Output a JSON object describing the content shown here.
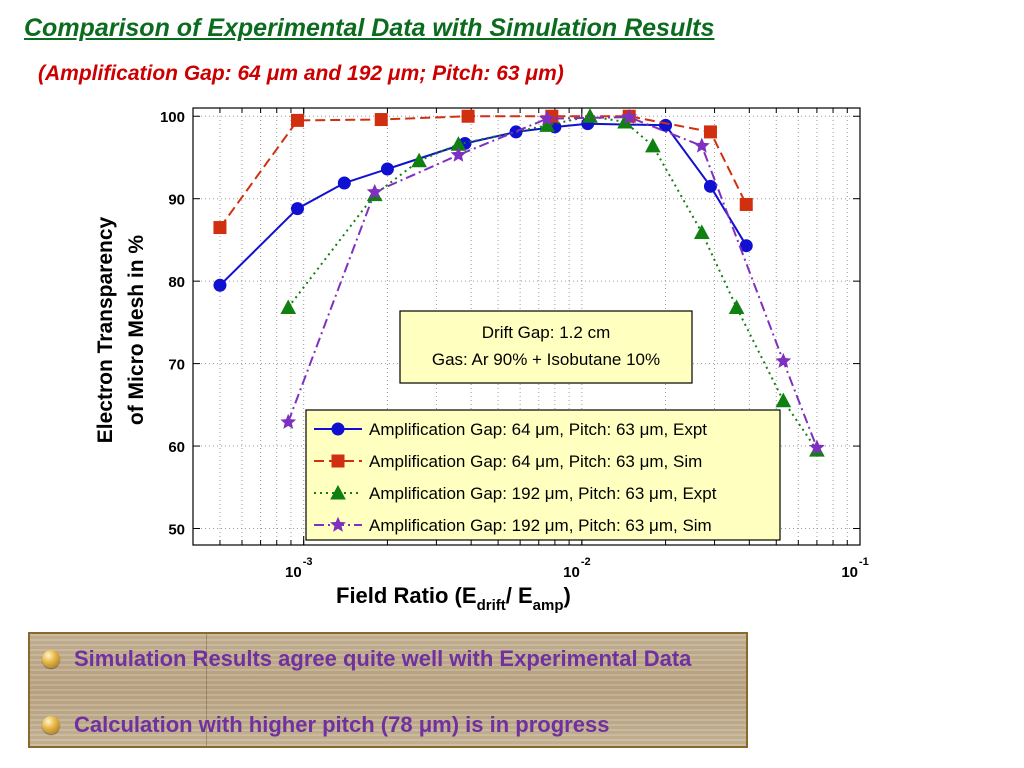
{
  "page": {
    "title": "Comparison of Experimental Data with Simulation Results",
    "subtitle": "(Amplification Gap: 64 μm and 192 μm; Pitch: 63 μm)"
  },
  "bullets": [
    "Simulation Results agree quite well with Experimental Data",
    "Calculation with higher pitch (78 μm) is in progress"
  ],
  "chart_data": {
    "type": "line",
    "xscale": "log",
    "xlim": [
      0.0004,
      0.1
    ],
    "ylim": [
      48,
      101
    ],
    "ylabel": "Electron Transparency",
    "ylabel2": "of Micro Mesh in %",
    "xlabel_main": "Field Ratio (E",
    "xlabel_sub1": "drift",
    "xlabel_mid": "/ E",
    "xlabel_sub2": "amp",
    "xlabel_end": ")",
    "yticks": [
      50,
      60,
      70,
      80,
      90,
      100
    ],
    "ytick_labels": [
      "50",
      "60",
      "70",
      "80",
      "90",
      "100"
    ],
    "xticks": [
      {
        "base": "10",
        "exp": "-3",
        "value": 0.001
      },
      {
        "base": "10",
        "exp": "-2",
        "value": 0.01
      },
      {
        "base": "10",
        "exp": "-1",
        "value": 0.1
      }
    ],
    "grid": true,
    "annotation": [
      "Drift Gap: 1.2 cm",
      "Gas: Ar 90% + Isobutane 10%"
    ],
    "legend_position": "bottom-center",
    "series": [
      {
        "name": "Amplification Gap: 64 μm, Pitch: 63 μm, Expt",
        "color": "#1010d0",
        "marker": "circle",
        "dash": "solid",
        "x": [
          0.0005,
          0.00095,
          0.0014,
          0.002,
          0.0038,
          0.0058,
          0.008,
          0.0105,
          0.02,
          0.029,
          0.039
        ],
        "y": [
          79.5,
          88.8,
          91.9,
          93.6,
          96.7,
          98.1,
          98.7,
          99.1,
          98.9,
          91.5,
          84.3
        ]
      },
      {
        "name": "Amplification Gap: 64 μm, Pitch: 63 μm, Sim",
        "color": "#d03010",
        "marker": "square",
        "dash": "dashed",
        "x": [
          0.0005,
          0.00095,
          0.0019,
          0.0039,
          0.0078,
          0.0148,
          0.029,
          0.039
        ],
        "y": [
          86.5,
          99.5,
          99.6,
          100.0,
          100.0,
          100.0,
          98.1,
          89.3
        ]
      },
      {
        "name": "Amplification Gap: 192 μm, Pitch: 63 μm, Expt",
        "color": "#108010",
        "marker": "triangle",
        "dash": "dotted",
        "x": [
          0.00088,
          0.0018,
          0.0026,
          0.0036,
          0.0075,
          0.0107,
          0.0143,
          0.018,
          0.027,
          0.036,
          0.053,
          0.07
        ],
        "y": [
          76.8,
          90.5,
          94.6,
          96.6,
          98.9,
          100.0,
          99.3,
          96.4,
          85.9,
          76.8,
          65.5,
          59.5
        ]
      },
      {
        "name": "Amplification Gap: 192 μm, Pitch: 63 μm, Sim",
        "color": "#8030c0",
        "marker": "star",
        "dash": "dashdot",
        "x": [
          0.00088,
          0.0018,
          0.0036,
          0.0075,
          0.0148,
          0.027,
          0.053,
          0.07
        ],
        "y": [
          62.9,
          90.8,
          95.3,
          99.7,
          99.9,
          96.4,
          70.3,
          59.8
        ]
      }
    ]
  }
}
